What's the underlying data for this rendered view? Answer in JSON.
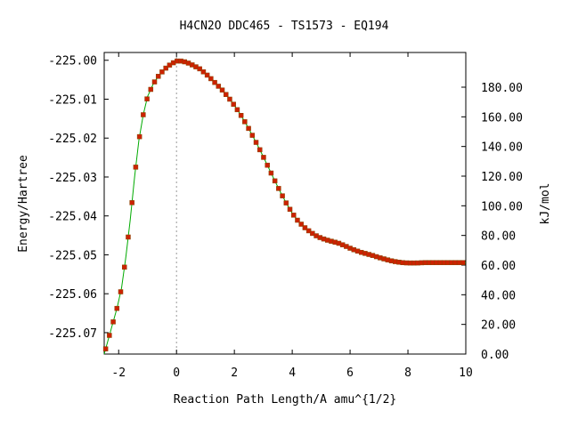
{
  "chart_data": {
    "type": "line",
    "title": "H4CN2O   DDC465 - TS1573 - EQ194",
    "xlabel": "Reaction Path Length/A amu^{1/2}",
    "ylabel": "Energy/Hartree",
    "y2label": "kJ/mol",
    "xlim": [
      -2.5,
      10
    ],
    "ylim": [
      -225.0755,
      -224.998
    ],
    "y2lim": [
      0,
      203.4
    ],
    "x_ticks": [
      -2,
      0,
      2,
      4,
      6,
      8,
      10
    ],
    "x_tick_labels": [
      "-2",
      "0",
      "2",
      "4",
      "6",
      "8",
      "10"
    ],
    "y_ticks": [
      -225.0,
      -225.01,
      -225.02,
      -225.03,
      -225.04,
      -225.05,
      -225.06,
      -225.07
    ],
    "y_tick_labels": [
      "-225.00",
      "-225.01",
      "-225.02",
      "-225.03",
      "-225.04",
      "-225.05",
      "-225.06",
      "-225.07"
    ],
    "y2_ticks": [
      0,
      20,
      40,
      60,
      80,
      100,
      120,
      140,
      160,
      180
    ],
    "y2_tick_labels": [
      "0.00",
      "20.00",
      "40.00",
      "60.00",
      "80.00",
      "100.00",
      "120.00",
      "140.00",
      "160.00",
      "180.00"
    ],
    "ts_marker_x": 0,
    "grid": false,
    "colors": {
      "line": "#00aa00",
      "points": "#cc2200",
      "ts_line": "#999999",
      "axis": "#000000"
    },
    "curve": {
      "x": [
        -2.5,
        -2.35,
        -2.2,
        -2.05,
        -1.9,
        -1.75,
        -1.6,
        -1.45,
        -1.3,
        -1.15,
        -1.0,
        -0.8,
        -0.6,
        -0.4,
        -0.2,
        0.0,
        0.2,
        0.4,
        0.6,
        0.8,
        1.0,
        1.2,
        1.4,
        1.6,
        1.8,
        2.0,
        2.2,
        2.4,
        2.6,
        2.8,
        3.0,
        3.2,
        3.4,
        3.6,
        3.8,
        4.0,
        4.2,
        4.4,
        4.6,
        4.8,
        5.0,
        5.2,
        5.4,
        5.6,
        5.8,
        6.0,
        6.2,
        6.4,
        6.6,
        6.8,
        7.0,
        7.2,
        7.4,
        7.6,
        7.8,
        8.0,
        8.3,
        8.6,
        9.0,
        9.5,
        10.0
      ],
      "y": [
        -225.0755,
        -225.0715,
        -225.0675,
        -225.0635,
        -225.0585,
        -225.0505,
        -225.041,
        -225.03,
        -225.0205,
        -225.014,
        -225.0093,
        -225.006,
        -225.0038,
        -225.0022,
        -225.001,
        -225.0002,
        -225.0002,
        -225.0007,
        -225.0014,
        -225.0022,
        -225.0034,
        -225.0048,
        -225.0063,
        -225.0078,
        -225.0096,
        -225.0116,
        -225.0138,
        -225.0163,
        -225.019,
        -225.0218,
        -225.0248,
        -225.0279,
        -225.031,
        -225.034,
        -225.0368,
        -225.0393,
        -225.0413,
        -225.0428,
        -225.044,
        -225.045,
        -225.0457,
        -225.0462,
        -225.0466,
        -225.047,
        -225.0476,
        -225.0483,
        -225.0489,
        -225.0494,
        -225.0498,
        -225.0502,
        -225.0507,
        -225.0511,
        -225.0515,
        -225.0518,
        -225.052,
        -225.0521,
        -225.0521,
        -225.052,
        -225.052,
        -225.052,
        -225.052
      ]
    },
    "point_step": 0.13
  }
}
